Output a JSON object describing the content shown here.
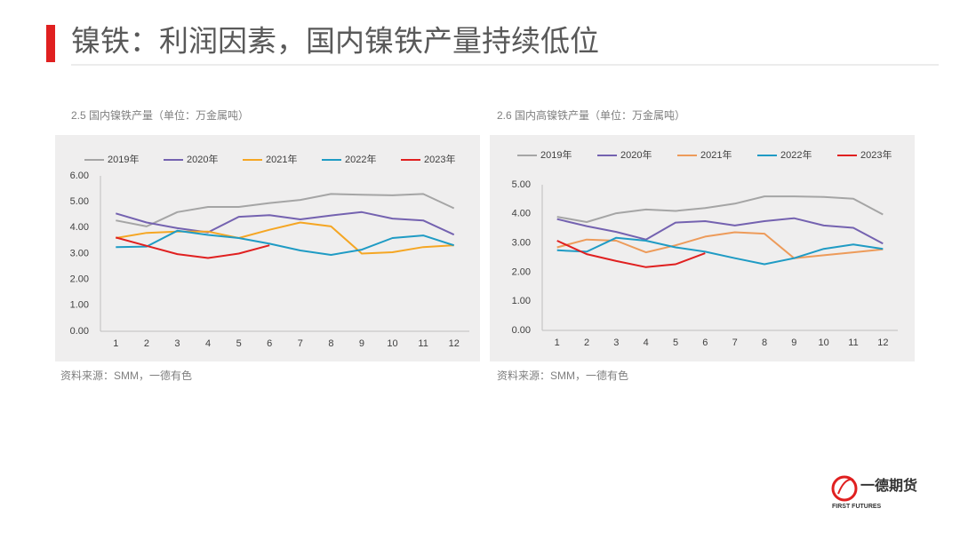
{
  "title": "镍铁：利润因素，国内镍铁产量持续低位",
  "logo": {
    "name": "一德期货",
    "sub": "FIRST FUTURES"
  },
  "chart_data": [
    {
      "type": "line",
      "title": "2.5 国内镍铁产量（单位：万金属吨）",
      "note": "资料来源：SMM，一德有色",
      "categories": [
        "1",
        "2",
        "3",
        "4",
        "5",
        "6",
        "7",
        "8",
        "9",
        "10",
        "11",
        "12"
      ],
      "ylim": [
        0,
        6
      ],
      "yticks": [
        {
          "value": 0,
          "label": "0.00"
        },
        {
          "value": 1,
          "label": "1.00"
        },
        {
          "value": 2,
          "label": "2.00"
        },
        {
          "value": 3,
          "label": "3.00"
        },
        {
          "value": 4,
          "label": "4.00"
        },
        {
          "value": 5,
          "label": "5.00"
        },
        {
          "value": 6,
          "label": "6.00"
        }
      ],
      "grid": false,
      "series": [
        {
          "name": "2019年",
          "color": "#a5a5a5",
          "values": [
            4.28,
            4.05,
            4.6,
            4.8,
            4.8,
            4.95,
            5.07,
            5.3,
            5.27,
            5.25,
            5.3,
            4.75
          ]
        },
        {
          "name": "2020年",
          "color": "#7462b0",
          "values": [
            4.55,
            4.2,
            3.98,
            3.82,
            4.42,
            4.48,
            4.32,
            4.47,
            4.6,
            4.35,
            4.28,
            3.73
          ]
        },
        {
          "name": "2021年",
          "color": "#f5a623",
          "values": [
            3.6,
            3.8,
            3.85,
            3.85,
            3.6,
            3.92,
            4.2,
            4.05,
            3.0,
            3.05,
            3.25,
            3.32
          ]
        },
        {
          "name": "2022年",
          "color": "#1f9bc4",
          "values": [
            3.25,
            3.27,
            3.88,
            3.72,
            3.6,
            3.38,
            3.12,
            2.95,
            3.15,
            3.6,
            3.7,
            3.32
          ]
        },
        {
          "name": "2023年",
          "color": "#e02020",
          "values": [
            3.62,
            3.3,
            2.98,
            2.83,
            3.0,
            3.32,
            null,
            null,
            null,
            null,
            null,
            null
          ]
        }
      ]
    },
    {
      "type": "line",
      "title": "2.6 国内高镍铁产量（单位：万金属吨）",
      "note": "资料来源：SMM，一德有色",
      "categories": [
        "1",
        "2",
        "3",
        "4",
        "5",
        "6",
        "7",
        "8",
        "9",
        "10",
        "11",
        "12"
      ],
      "ylim": [
        0,
        5
      ],
      "yticks": [
        {
          "value": 0,
          "label": "0.00"
        },
        {
          "value": 1,
          "label": "1.00"
        },
        {
          "value": 2,
          "label": "2.00"
        },
        {
          "value": 3,
          "label": "3.00"
        },
        {
          "value": 4,
          "label": "4.00"
        },
        {
          "value": 5,
          "label": "5.00"
        }
      ],
      "grid": false,
      "series": [
        {
          "name": "2019年",
          "color": "#a5a5a5",
          "values": [
            3.9,
            3.72,
            4.02,
            4.15,
            4.1,
            4.2,
            4.35,
            4.6,
            4.6,
            4.58,
            4.52,
            3.98
          ]
        },
        {
          "name": "2020年",
          "color": "#7462b0",
          "values": [
            3.82,
            3.58,
            3.38,
            3.12,
            3.7,
            3.75,
            3.6,
            3.75,
            3.85,
            3.6,
            3.52,
            2.98
          ]
        },
        {
          "name": "2021年",
          "color": "#ed9b5a",
          "values": [
            2.85,
            3.12,
            3.08,
            2.68,
            2.92,
            3.22,
            3.37,
            3.32,
            2.48,
            2.58,
            2.68,
            2.78
          ]
        },
        {
          "name": "2022年",
          "color": "#1f9bc4",
          "values": [
            2.75,
            2.7,
            3.18,
            3.08,
            2.85,
            2.7,
            2.48,
            2.27,
            2.48,
            2.8,
            2.95,
            2.8
          ]
        },
        {
          "name": "2023年",
          "color": "#e02020",
          "values": [
            3.08,
            2.62,
            2.38,
            2.17,
            2.27,
            2.65,
            null,
            null,
            null,
            null,
            null,
            null
          ]
        }
      ]
    }
  ]
}
